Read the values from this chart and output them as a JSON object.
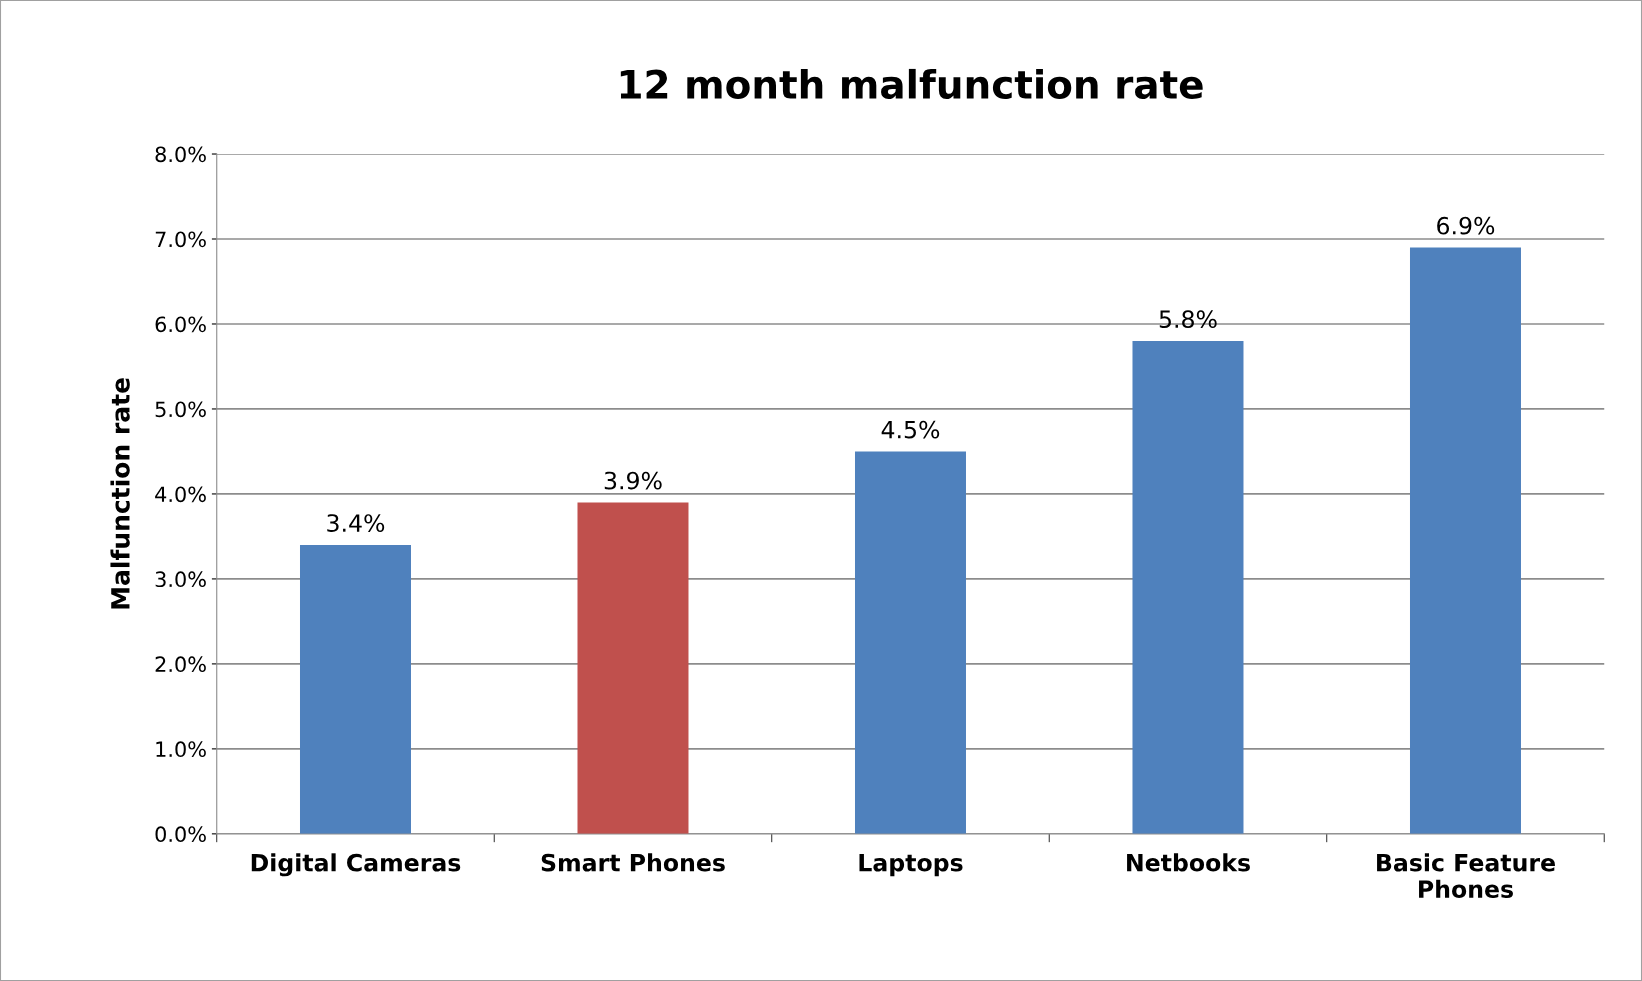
{
  "chart_data": {
    "type": "bar",
    "title": "12 month malfunction rate",
    "ylabel": "Malfunction rate",
    "categories": [
      "Digital Cameras",
      "Smart Phones",
      "Laptops",
      "Netbooks",
      "Basic Feature\nPhones"
    ],
    "values": [
      3.4,
      3.9,
      4.5,
      5.8,
      6.9
    ],
    "colors": [
      "#4f81bd",
      "#c0504d",
      "#4f81bd",
      "#4f81bd",
      "#4f81bd"
    ],
    "value_labels": [
      "3.4%",
      "3.9%",
      "4.5%",
      "5.8%",
      "6.9%"
    ],
    "ylim": [
      0,
      8
    ],
    "yticks": [
      {
        "value": 0,
        "label": "0.0%"
      },
      {
        "value": 1,
        "label": "1.0%"
      },
      {
        "value": 2,
        "label": "2.0%"
      },
      {
        "value": 3,
        "label": "3.0%"
      },
      {
        "value": 4,
        "label": "4.0%"
      },
      {
        "value": 5,
        "label": "5.0%"
      },
      {
        "value": 6,
        "label": "6.0%"
      },
      {
        "value": 7,
        "label": "7.0%"
      },
      {
        "value": 8,
        "label": "8.0%"
      }
    ],
    "grid": "y",
    "legend": false
  }
}
